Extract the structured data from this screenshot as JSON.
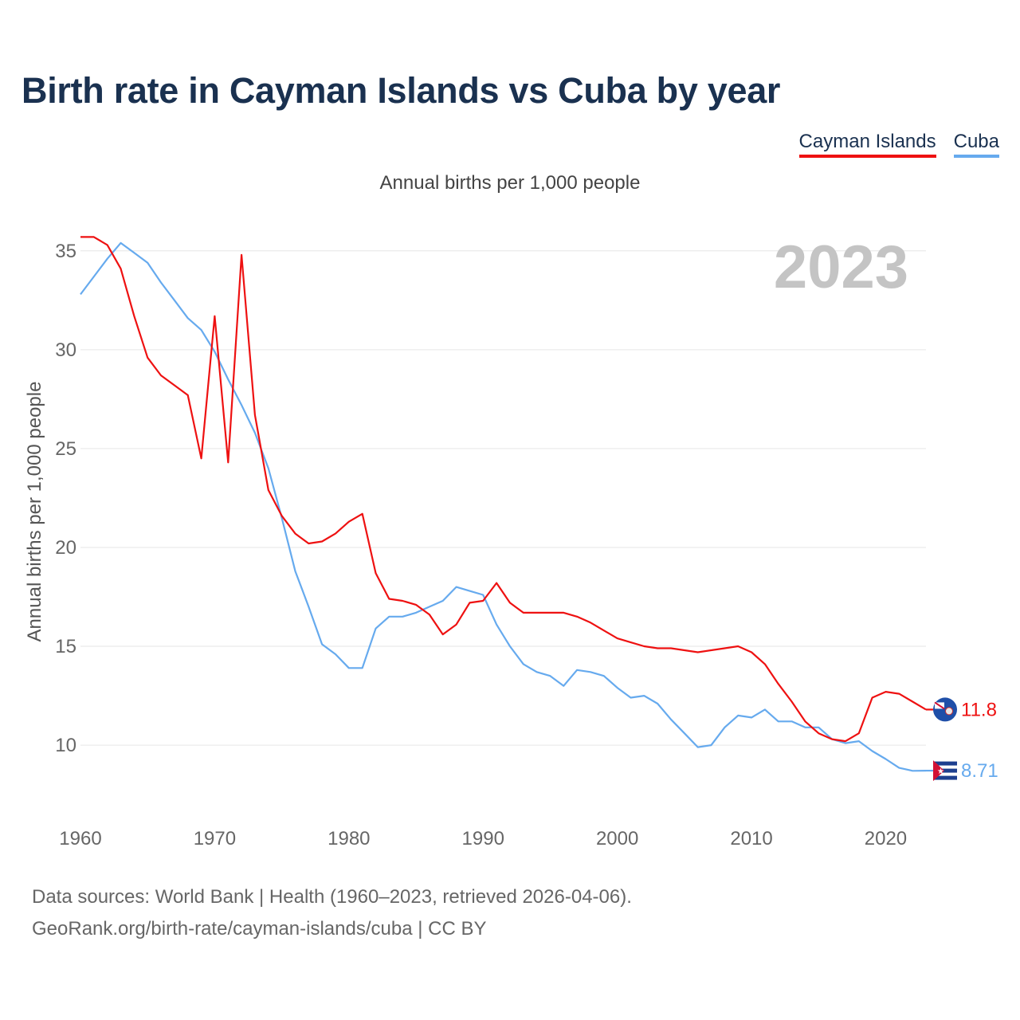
{
  "title": "Birth rate in Cayman Islands vs Cuba by year",
  "subtitle": "Annual births per 1,000 people",
  "legend": [
    {
      "label": "Cayman Islands",
      "color": "#ee1111"
    },
    {
      "label": "Cuba",
      "color": "#66aaee"
    }
  ],
  "year_label": "2023",
  "footer": {
    "line1": "Data sources: World Bank | Health (1960–2023, retrieved 2026-04-06).",
    "line2": "GeoRank.org/birth-rate/cayman-islands/cuba | CC BY"
  },
  "chart_data": {
    "type": "line",
    "title": "Birth rate in Cayman Islands vs Cuba by year",
    "xlabel": "",
    "ylabel": "Annual births per 1,000 people",
    "xlim": [
      1960,
      2023
    ],
    "ylim": [
      6.9,
      36
    ],
    "x_ticks": [
      1960,
      1970,
      1980,
      1990,
      2000,
      2010,
      2020
    ],
    "y_ticks": [
      10,
      15,
      20,
      25,
      30,
      35
    ],
    "grid": true,
    "x": [
      1960,
      1961,
      1962,
      1963,
      1964,
      1965,
      1966,
      1967,
      1968,
      1969,
      1970,
      1971,
      1972,
      1973,
      1974,
      1975,
      1976,
      1977,
      1978,
      1979,
      1980,
      1981,
      1982,
      1983,
      1984,
      1985,
      1986,
      1987,
      1988,
      1989,
      1990,
      1991,
      1992,
      1993,
      1994,
      1995,
      1996,
      1997,
      1998,
      1999,
      2000,
      2001,
      2002,
      2003,
      2004,
      2005,
      2006,
      2007,
      2008,
      2009,
      2010,
      2011,
      2012,
      2013,
      2014,
      2015,
      2016,
      2017,
      2018,
      2019,
      2020,
      2021,
      2022,
      2023
    ],
    "series": [
      {
        "name": "Cayman Islands",
        "color": "#ee1111",
        "end_label": "11.8",
        "values": [
          35.7,
          35.7,
          35.3,
          34.1,
          31.7,
          29.6,
          28.7,
          28.2,
          27.7,
          24.5,
          31.7,
          24.3,
          34.8,
          26.7,
          22.9,
          21.6,
          20.7,
          20.2,
          20.3,
          20.7,
          21.3,
          21.7,
          18.7,
          17.4,
          17.3,
          17.1,
          16.6,
          15.6,
          16.1,
          17.2,
          17.3,
          18.2,
          17.2,
          16.7,
          16.7,
          16.7,
          16.7,
          16.5,
          16.2,
          15.8,
          15.4,
          15.2,
          15.0,
          14.9,
          14.9,
          14.8,
          14.7,
          14.8,
          14.9,
          15.0,
          14.7,
          14.1,
          13.1,
          12.2,
          11.2,
          10.6,
          10.3,
          10.2,
          10.6,
          12.4,
          12.7,
          12.6,
          12.2,
          11.8
        ]
      },
      {
        "name": "Cuba",
        "color": "#66aaee",
        "end_label": "8.71",
        "values": [
          32.8,
          33.7,
          34.6,
          35.4,
          34.9,
          34.4,
          33.4,
          32.5,
          31.6,
          31.0,
          29.9,
          28.5,
          27.2,
          25.8,
          24.0,
          21.5,
          18.8,
          17.0,
          15.1,
          14.6,
          13.9,
          13.9,
          15.9,
          16.5,
          16.5,
          16.7,
          17.0,
          17.3,
          18.0,
          17.8,
          17.6,
          16.1,
          15.0,
          14.1,
          13.7,
          13.5,
          13.0,
          13.8,
          13.7,
          13.5,
          12.9,
          12.4,
          12.5,
          12.1,
          11.3,
          10.6,
          9.9,
          10.0,
          10.9,
          11.5,
          11.4,
          11.8,
          11.2,
          11.2,
          10.9,
          10.9,
          10.3,
          10.1,
          10.2,
          9.7,
          9.3,
          8.85,
          8.7,
          8.71
        ]
      }
    ]
  }
}
